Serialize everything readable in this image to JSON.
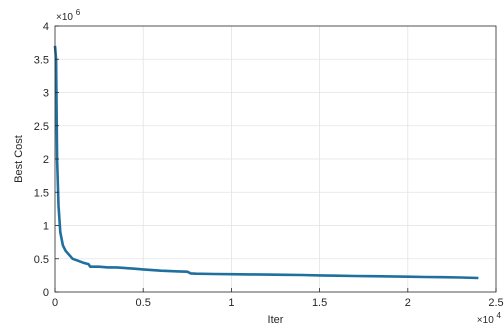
{
  "chart_data": {
    "type": "line",
    "title": "",
    "xlabel": "Iter",
    "ylabel": "Best Cost",
    "x_exponent_label": "×10",
    "x_exponent_power": "4",
    "y_exponent_label": "×10",
    "y_exponent_power": "6",
    "xlim": [
      0,
      25000
    ],
    "ylim": [
      0,
      4000000
    ],
    "x_ticks": [
      0,
      5000,
      10000,
      15000,
      20000,
      25000
    ],
    "x_tick_labels": [
      "0",
      "0.5",
      "1",
      "1.5",
      "2",
      "2.5"
    ],
    "y_ticks": [
      0,
      500000,
      1000000,
      1500000,
      2000000,
      2500000,
      3000000,
      3500000,
      4000000
    ],
    "y_tick_labels": [
      "0",
      "0.5",
      "1",
      "1.5",
      "2",
      "2.5",
      "3",
      "3.5",
      "4"
    ],
    "grid": true,
    "line_color": "#1f6f9f",
    "series": [
      {
        "x": [
          0,
          60,
          120,
          200,
          300,
          450,
          600,
          800,
          1000,
          1300,
          1600,
          1900,
          2000,
          2500,
          3000,
          3500,
          4000,
          4500,
          5000,
          5500,
          6000,
          6500,
          7000,
          7500,
          7700,
          8000,
          9000,
          10000,
          11000,
          12000,
          13000,
          14000,
          15000,
          16000,
          17000,
          18000,
          19000,
          20000,
          21000,
          22000,
          23000,
          24000
        ],
        "y": [
          3700000,
          3500000,
          2000000,
          1300000,
          900000,
          700000,
          620000,
          560000,
          500000,
          470000,
          440000,
          420000,
          380000,
          380000,
          370000,
          370000,
          360000,
          350000,
          340000,
          330000,
          320000,
          315000,
          310000,
          305000,
          280000,
          275000,
          270000,
          268000,
          265000,
          262000,
          258000,
          255000,
          250000,
          245000,
          240000,
          238000,
          235000,
          230000,
          225000,
          222000,
          218000,
          210000
        ]
      }
    ]
  }
}
